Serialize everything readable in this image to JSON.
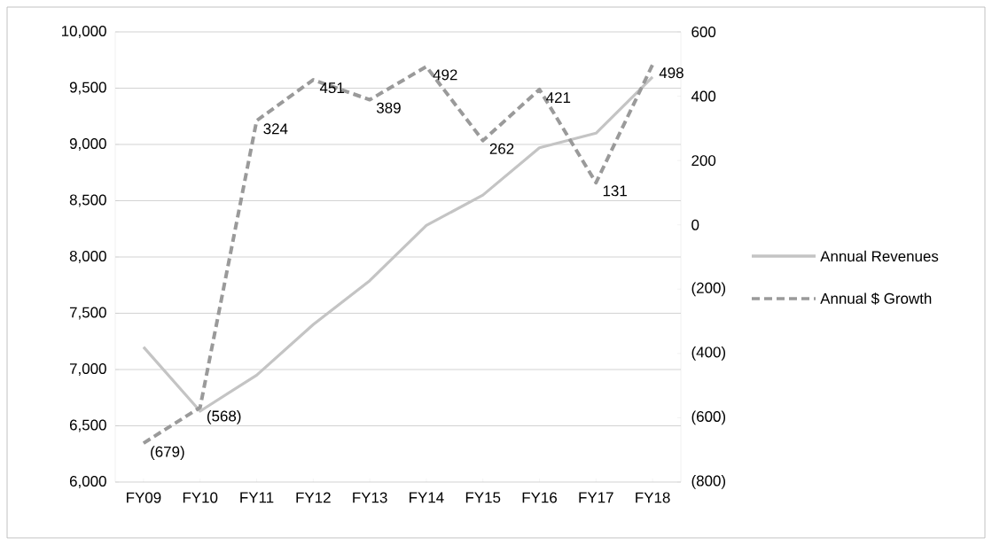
{
  "chart_data": {
    "type": "line",
    "categories": [
      "FY09",
      "FY10",
      "FY11",
      "FY12",
      "FY13",
      "FY14",
      "FY15",
      "FY16",
      "FY17",
      "FY18"
    ],
    "series": [
      {
        "name": "Annual Revenues",
        "color": "#c4c4c4",
        "line_style": "solid",
        "values": [
          7200,
          6630,
          6950,
          7400,
          7790,
          8280,
          8550,
          8970,
          9100,
          9600
        ]
      },
      {
        "name": "Annual $ Growth",
        "color": "#9a9a9a",
        "line_style": "dashed",
        "axis": "y2",
        "values": [
          -679,
          -568,
          324,
          451,
          389,
          492,
          262,
          421,
          131,
          498
        ],
        "value_labels": [
          "(679)",
          "(568)",
          "324",
          "451",
          "389",
          "492",
          "262",
          "421",
          "131",
          "498"
        ]
      }
    ],
    "ylim": [
      6000,
      10000
    ],
    "yticks": [
      {
        "value": 6000,
        "label": "6,000"
      },
      {
        "value": 6500,
        "label": "6,500"
      },
      {
        "value": 7000,
        "label": "7,000"
      },
      {
        "value": 7500,
        "label": "7,500"
      },
      {
        "value": 8000,
        "label": "8,000"
      },
      {
        "value": 8500,
        "label": "8,500"
      },
      {
        "value": 9000,
        "label": "9,000"
      },
      {
        "value": 9500,
        "label": "9,500"
      },
      {
        "value": 10000,
        "label": "10,000"
      }
    ],
    "y2lim": [
      -800,
      600
    ],
    "y2ticks": [
      {
        "value": -800,
        "label": "(800)"
      },
      {
        "value": -600,
        "label": "(600)"
      },
      {
        "value": -400,
        "label": "(400)"
      },
      {
        "value": -200,
        "label": "(200)"
      },
      0,
      200,
      400,
      600
    ],
    "grid": "y",
    "legend": "right",
    "marker": "none"
  }
}
